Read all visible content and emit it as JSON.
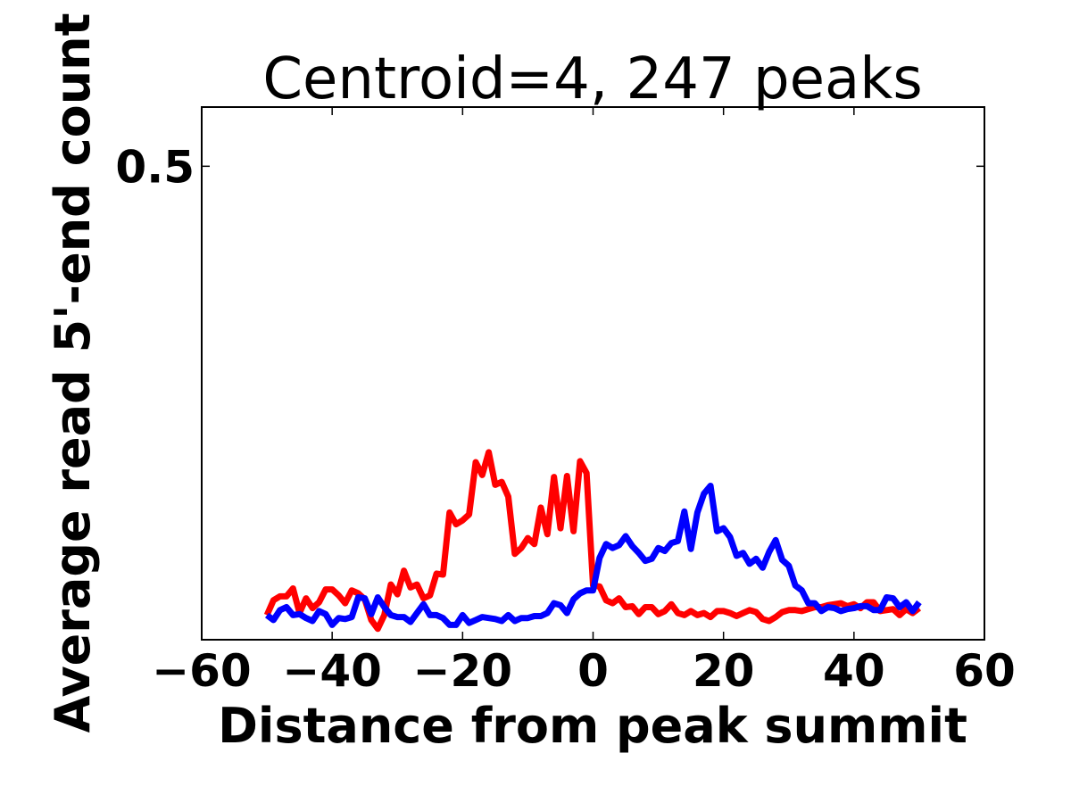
{
  "chart_data": {
    "type": "line",
    "title": "Centroid=4, 247 peaks",
    "xlabel": "Distance from peak summit",
    "ylabel": "Average read 5'-end count",
    "xlim": [
      -60,
      60
    ],
    "ylim": [
      0.02,
      0.56
    ],
    "xticks": [
      -60,
      -40,
      -20,
      0,
      20,
      40,
      60
    ],
    "xtick_labels": [
      "−60",
      "−40",
      "−20",
      "0",
      "20",
      "40",
      "60"
    ],
    "yticks": [
      0.5
    ],
    "ytick_labels": [
      "0.5"
    ],
    "grid": false,
    "x": [
      -50,
      -49,
      -48,
      -47,
      -46,
      -45,
      -44,
      -43,
      -42,
      -41,
      -40,
      -39,
      -38,
      -37,
      -36,
      -35,
      -34,
      -33,
      -32,
      -31,
      -30,
      -29,
      -28,
      -27,
      -26,
      -25,
      -24,
      -23,
      -22,
      -21,
      -20,
      -19,
      -18,
      -17,
      -16,
      -15,
      -14,
      -13,
      -12,
      -11,
      -10,
      -9,
      -8,
      -7,
      -6,
      -5,
      -4,
      -3,
      -2,
      -1,
      0,
      1,
      2,
      3,
      4,
      5,
      6,
      7,
      8,
      9,
      10,
      11,
      12,
      13,
      14,
      15,
      16,
      17,
      18,
      19,
      20,
      21,
      22,
      23,
      24,
      25,
      26,
      27,
      28,
      29,
      30,
      31,
      32,
      33,
      34,
      35,
      36,
      37,
      38,
      39,
      40,
      41,
      42,
      43,
      44,
      45,
      46,
      47,
      48,
      49,
      50
    ],
    "series": [
      {
        "color": "#ff0000",
        "values": [
          0.045,
          0.06,
          0.064,
          0.064,
          0.072,
          0.047,
          0.062,
          0.052,
          0.058,
          0.071,
          0.071,
          0.065,
          0.057,
          0.07,
          0.067,
          0.061,
          0.04,
          0.031,
          0.045,
          0.076,
          0.066,
          0.09,
          0.073,
          0.076,
          0.062,
          0.065,
          0.087,
          0.086,
          0.149,
          0.137,
          0.141,
          0.147,
          0.2,
          0.187,
          0.21,
          0.177,
          0.18,
          0.165,
          0.107,
          0.113,
          0.123,
          0.117,
          0.154,
          0.127,
          0.185,
          0.133,
          0.186,
          0.13,
          0.201,
          0.189,
          0.075,
          0.074,
          0.06,
          0.057,
          0.062,
          0.053,
          0.054,
          0.046,
          0.053,
          0.053,
          0.046,
          0.049,
          0.056,
          0.047,
          0.045,
          0.049,
          0.045,
          0.047,
          0.043,
          0.049,
          0.049,
          0.047,
          0.044,
          0.047,
          0.05,
          0.048,
          0.041,
          0.039,
          0.043,
          0.048,
          0.05,
          0.05,
          0.049,
          0.051,
          0.053,
          0.053,
          0.055,
          0.056,
          0.057,
          0.054,
          0.056,
          0.052,
          0.058,
          0.058,
          0.049,
          0.05,
          0.051,
          0.045,
          0.051,
          0.047,
          0.052
        ]
      },
      {
        "color": "#0000ff",
        "values": [
          0.045,
          0.04,
          0.05,
          0.053,
          0.045,
          0.046,
          0.042,
          0.039,
          0.049,
          0.046,
          0.035,
          0.042,
          0.041,
          0.043,
          0.063,
          0.062,
          0.046,
          0.063,
          0.053,
          0.045,
          0.043,
          0.043,
          0.038,
          0.047,
          0.056,
          0.045,
          0.045,
          0.042,
          0.035,
          0.035,
          0.045,
          0.037,
          0.04,
          0.043,
          0.042,
          0.041,
          0.039,
          0.045,
          0.039,
          0.042,
          0.042,
          0.044,
          0.044,
          0.047,
          0.057,
          0.055,
          0.047,
          0.061,
          0.067,
          0.07,
          0.07,
          0.103,
          0.117,
          0.113,
          0.116,
          0.125,
          0.115,
          0.108,
          0.1,
          0.102,
          0.113,
          0.11,
          0.118,
          0.12,
          0.15,
          0.112,
          0.149,
          0.168,
          0.176,
          0.13,
          0.133,
          0.124,
          0.105,
          0.108,
          0.097,
          0.102,
          0.093,
          0.109,
          0.121,
          0.101,
          0.095,
          0.075,
          0.07,
          0.057,
          0.057,
          0.049,
          0.053,
          0.052,
          0.049,
          0.051,
          0.052,
          0.054,
          0.054,
          0.05,
          0.05,
          0.063,
          0.062,
          0.053,
          0.058,
          0.049,
          0.058
        ]
      }
    ]
  }
}
